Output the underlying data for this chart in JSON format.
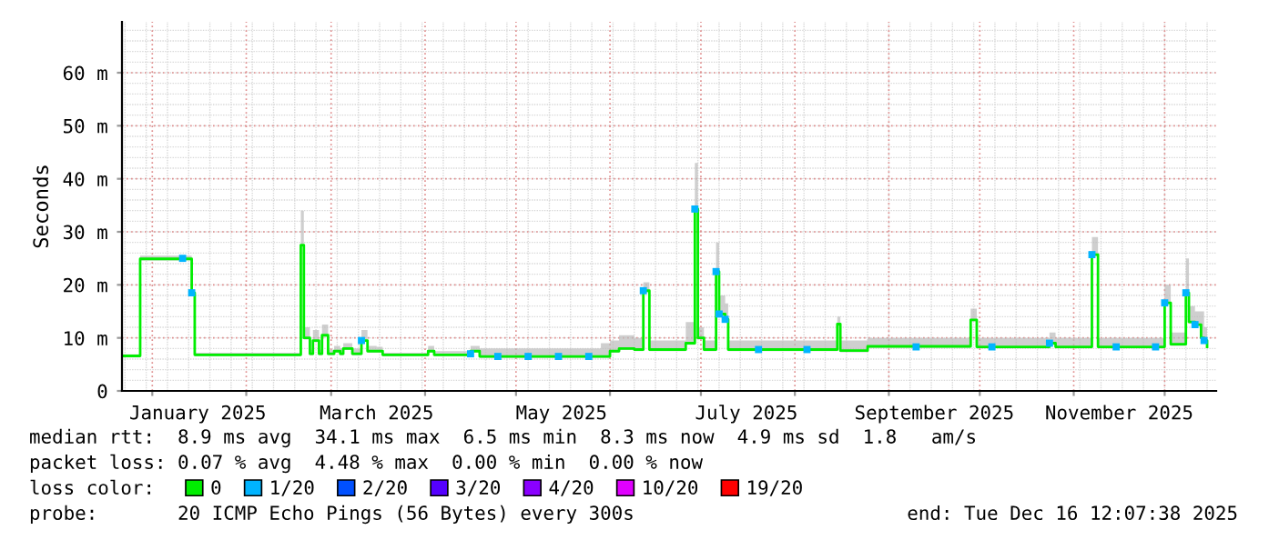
{
  "chart_data": {
    "type": "step",
    "ylabel": "Seconds",
    "xlim": [
      "2024-12-22",
      "2025-12-18"
    ],
    "xticks": [
      {
        "value": "2025-01-01",
        "label": null
      },
      {
        "value": "2025-01-16",
        "label": "January 2025"
      },
      {
        "value": "2025-02-01",
        "label": null
      },
      {
        "value": "2025-03-01",
        "label": null
      },
      {
        "value": "2025-03-16",
        "label": "March 2025"
      },
      {
        "value": "2025-04-01",
        "label": null
      },
      {
        "value": "2025-05-01",
        "label": null
      },
      {
        "value": "2025-05-16",
        "label": "May 2025"
      },
      {
        "value": "2025-06-01",
        "label": null
      },
      {
        "value": "2025-07-01",
        "label": null
      },
      {
        "value": "2025-07-16",
        "label": "July 2025"
      },
      {
        "value": "2025-08-01",
        "label": null
      },
      {
        "value": "2025-09-01",
        "label": null
      },
      {
        "value": "2025-09-16",
        "label": "September 2025"
      },
      {
        "value": "2025-10-01",
        "label": null
      },
      {
        "value": "2025-11-01",
        "label": null
      },
      {
        "value": "2025-11-16",
        "label": "November 2025"
      },
      {
        "value": "2025-12-01",
        "label": null
      }
    ],
    "ylim": [
      0,
      69.6
    ],
    "yticks": [
      0,
      {
        "value": 10,
        "label": "10 m"
      },
      {
        "value": 20,
        "label": "20 m"
      },
      {
        "value": 30,
        "label": "30 m"
      },
      {
        "value": 40,
        "label": "40 m"
      },
      {
        "value": 50,
        "label": "50 m"
      },
      {
        "value": 60,
        "label": "60 m"
      }
    ],
    "grid": true,
    "legend": "bottom",
    "legend_title": "loss color:",
    "series": [
      {
        "name": "0",
        "color": "#00ee00",
        "x": [
          "2024-12-22",
          "2024-12-28",
          "2025-01-14",
          "2025-01-15",
          "2025-02-17",
          "2025-02-19",
          "2025-02-20",
          "2025-02-22",
          "2025-02-23",
          "2025-02-25",
          "2025-02-26",
          "2025-02-28",
          "2025-03-02",
          "2025-03-04",
          "2025-03-05",
          "2025-03-08",
          "2025-03-11",
          "2025-03-13",
          "2025-03-16",
          "2025-03-18",
          "2025-03-30",
          "2025-04-02",
          "2025-04-04",
          "2025-04-14",
          "2025-04-16",
          "2025-04-19",
          "2025-05-29",
          "2025-06-01",
          "2025-06-04",
          "2025-06-09",
          "2025-06-12",
          "2025-06-14",
          "2025-06-26",
          "2025-06-29",
          "2025-06-30",
          "2025-07-02",
          "2025-07-06",
          "2025-07-07",
          "2025-07-09",
          "2025-07-10",
          "2025-08-15",
          "2025-08-16",
          "2025-08-23",
          "2025-08-25",
          "2025-09-28",
          "2025-09-30",
          "2025-10-24",
          "2025-10-26",
          "2025-11-07",
          "2025-11-09",
          "2025-11-26",
          "2025-12-01",
          "2025-12-03",
          "2025-12-08",
          "2025-12-09",
          "2025-12-11",
          "2025-12-13",
          "2025-12-14",
          "2025-12-15"
        ],
        "values": [
          6.6,
          24.9,
          18.5,
          6.8,
          6.8,
          27.5,
          10.0,
          7.0,
          9.5,
          7.0,
          10.5,
          7.0,
          7.5,
          7.0,
          8.0,
          7.0,
          9.5,
          7.5,
          7.5,
          6.8,
          6.8,
          7.5,
          6.8,
          6.8,
          7.5,
          6.5,
          6.5,
          7.5,
          8.0,
          7.8,
          18.9,
          7.8,
          9.0,
          34.3,
          10.0,
          7.8,
          22.5,
          14.5,
          13.5,
          7.8,
          12.6,
          7.6,
          7.6,
          8.4,
          13.4,
          8.3,
          9.0,
          8.3,
          25.7,
          8.3,
          8.3,
          16.6,
          8.8,
          18.5,
          13.0,
          12.5,
          10.0,
          9.5,
          8.3
        ],
        "upper": [
          6.9,
          25.5,
          19,
          7.2,
          7.2,
          34,
          12,
          7.8,
          11.5,
          7.8,
          12.5,
          7.8,
          8.5,
          8,
          9,
          8,
          11.5,
          8.5,
          8.3,
          7.2,
          7.2,
          8.5,
          7.5,
          7.5,
          8.5,
          8,
          9,
          9.5,
          10.5,
          10,
          20.5,
          9.5,
          13,
          43,
          12,
          9.5,
          28,
          18,
          16.5,
          9.5,
          14,
          9.5,
          9.5,
          10,
          15.5,
          10,
          11,
          10,
          29,
          10,
          10,
          20,
          11,
          25,
          16,
          15,
          15,
          12,
          10
        ],
        "lower": [
          6.3,
          24.6,
          18.2,
          6.5,
          6.5,
          27.2,
          9.7,
          6.7,
          9.2,
          6.7,
          10.2,
          6.7,
          7.2,
          6.7,
          7.7,
          6.7,
          9.2,
          7.2,
          7.2,
          6.5,
          6.5,
          7.2,
          6.5,
          6.5,
          7.2,
          6.2,
          6.2,
          7.2,
          7.7,
          7.5,
          18.6,
          7.5,
          8.7,
          34.0,
          9.7,
          7.5,
          22.2,
          14.2,
          13.2,
          7.5,
          12.3,
          7.3,
          7.3,
          8.1,
          13.1,
          8.0,
          8.7,
          8.0,
          25.4,
          8.0,
          8.0,
          16.3,
          8.5,
          18.2,
          12.7,
          12.2,
          9.7,
          9.2,
          8.0
        ]
      },
      {
        "name": "1/20",
        "type": "scatter",
        "marker": "square",
        "color": "#00b4ff",
        "x": [
          "2025-01-11",
          "2025-01-14",
          "2025-03-11",
          "2025-04-16",
          "2025-04-25",
          "2025-05-05",
          "2025-05-15",
          "2025-05-25",
          "2025-06-12",
          "2025-06-29",
          "2025-07-06",
          "2025-07-07",
          "2025-07-09",
          "2025-07-20",
          "2025-08-05",
          "2025-09-10",
          "2025-10-05",
          "2025-10-24",
          "2025-11-07",
          "2025-11-15",
          "2025-11-28",
          "2025-12-01",
          "2025-12-08",
          "2025-12-11",
          "2025-12-14"
        ],
        "values": [
          25.0,
          18.5,
          9.5,
          7.0,
          6.5,
          6.5,
          6.5,
          6.5,
          18.9,
          34.3,
          22.5,
          14.5,
          13.5,
          7.8,
          7.8,
          8.3,
          8.3,
          9.0,
          25.7,
          8.3,
          8.3,
          16.6,
          18.5,
          12.5,
          9.5
        ]
      },
      {
        "name": "2/20",
        "color": "#0050ff"
      },
      {
        "name": "3/20",
        "color": "#5500ff"
      },
      {
        "name": "4/20",
        "color": "#8a00ff"
      },
      {
        "name": "10/20",
        "color": "#e000ff"
      },
      {
        "name": "19/20",
        "color": "#ff0000"
      }
    ],
    "annotations": [
      "median rtt:  8.9 ms avg  34.1 ms max  6.5 ms min  8.3 ms now  4.9 ms sd  1.8   am/s",
      "packet loss: 0.07 % avg  4.48 % max  0.00 % min  0.00 % now",
      "probe:       20 ICMP Echo Pings (56 Bytes) every 300s",
      "end: Tue Dec 16 12:07:38 2025"
    ]
  }
}
